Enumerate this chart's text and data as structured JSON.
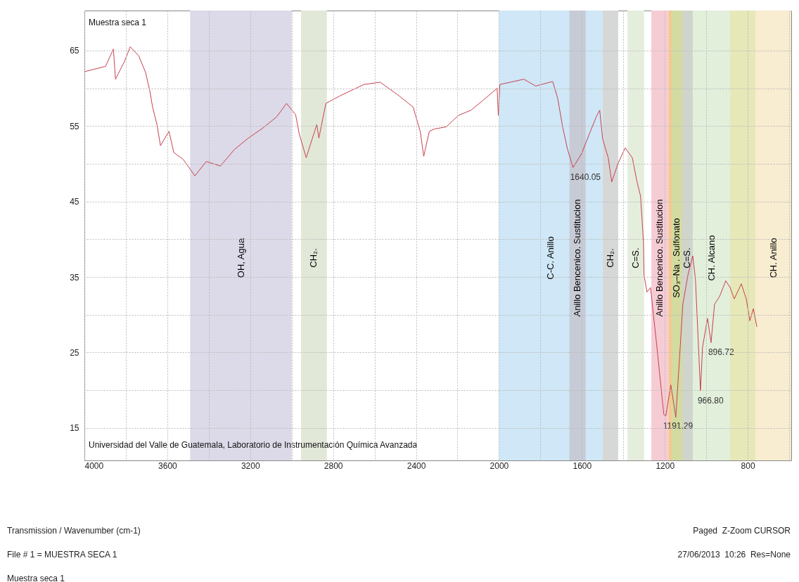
{
  "chart_data": {
    "type": "line",
    "title": "Muestra seca 1",
    "x": [
      4000,
      3898,
      3860,
      3850,
      3806,
      3779,
      3738,
      3705,
      3684,
      3671,
      3650,
      3633,
      3592,
      3569,
      3524,
      3467,
      3412,
      3344,
      3276,
      3209,
      3141,
      3073,
      3025,
      2981,
      2964,
      2930,
      2879,
      2869,
      2835,
      2767,
      2652,
      2573,
      2482,
      2414,
      2380,
      2363,
      2336,
      2312,
      2254,
      2196,
      2135,
      2077,
      2009,
      2003,
      1996,
      1880,
      1823,
      1741,
      1717,
      1693,
      1670,
      1643,
      1602,
      1565,
      1531,
      1514,
      1500,
      1473,
      1456,
      1425,
      1391,
      1357,
      1334,
      1317,
      1303,
      1300,
      1286,
      1269,
      1238,
      1205,
      1195,
      1171,
      1147,
      1133,
      1113,
      1089,
      1065,
      1052,
      1028,
      1018,
      994,
      977,
      960,
      936,
      906,
      885,
      865,
      831,
      807,
      790,
      773,
      756
    ],
    "series": [
      {
        "color": "#c9404f",
        "values": [
          62.2,
          62.9,
          65.2,
          61.2,
          63.6,
          65.5,
          64.3,
          62.1,
          59.6,
          57.5,
          55.2,
          52.4,
          54.3,
          51.5,
          50.6,
          48.4,
          50.3,
          49.7,
          51.9,
          53.4,
          54.7,
          56.2,
          58.0,
          56.5,
          54.0,
          50.8,
          55.2,
          53.4,
          58.0,
          59.0,
          60.5,
          60.8,
          59.0,
          57.5,
          54.3,
          51.0,
          54.3,
          54.6,
          54.9,
          56.4,
          57.1,
          58.4,
          60.0,
          56.4,
          60.5,
          61.2,
          60.3,
          60.9,
          58.7,
          54.9,
          52.0,
          49.5,
          51.3,
          53.9,
          56.2,
          57.1,
          53.3,
          50.8,
          47.6,
          50.1,
          52.1,
          50.8,
          47.6,
          45.7,
          39.6,
          35.2,
          33.0,
          33.6,
          25.7,
          16.8,
          16.6,
          20.7,
          16.4,
          22.5,
          31.4,
          35.2,
          37.8,
          34.6,
          19.9,
          25.7,
          29.5,
          26.3,
          31.4,
          32.4,
          34.5,
          33.6,
          32.1,
          34.1,
          32.1,
          29.2,
          30.8,
          28.4
        ]
      }
    ],
    "xlim": [
      4000,
      590
    ],
    "ylim": [
      10.7,
      70.3
    ],
    "xticks": [
      4000,
      {
        "value": 3800,
        "label": null
      },
      3600,
      {
        "value": 3400,
        "label": null
      },
      3200,
      {
        "value": 3000,
        "label": null
      },
      2800,
      {
        "value": 2600,
        "label": null
      },
      2400,
      {
        "value": 2200,
        "label": null
      },
      2000,
      {
        "value": 1800,
        "label": null
      },
      1600,
      {
        "value": 1400,
        "label": null
      },
      1200,
      {
        "value": 1000,
        "label": null
      },
      800,
      {
        "value": 600,
        "label": null
      }
    ],
    "yticks": [
      15,
      {
        "value": 20,
        "label": null
      },
      25,
      {
        "value": 30,
        "label": null
      },
      35,
      {
        "value": 40,
        "label": null
      },
      45,
      {
        "value": 50,
        "label": null
      },
      55,
      {
        "value": 60,
        "label": null
      },
      65
    ],
    "grid": true,
    "bands": [
      {
        "axis": "x",
        "from": 3490,
        "to": 3000,
        "label": "OH, Agua",
        "color": "#dcdae8"
      },
      {
        "axis": "x",
        "from": 2955,
        "to": 2830,
        "label": "CH₂.",
        "color": "#e2e8d8"
      },
      {
        "axis": "x",
        "from": 2000,
        "to": 1500,
        "label": "C-C.          Anillo",
        "color": "#cfe7f6"
      },
      {
        "axis": "x",
        "from": 1660,
        "to": 1582,
        "label": "Anillo  Bencenico.  Sustitucion",
        "color": "#c7cbd6"
      },
      {
        "axis": "x",
        "from": 1500,
        "to": 1425,
        "label": "CH₂.",
        "color": "#d6d8d8"
      },
      {
        "axis": "x",
        "from": 1380,
        "to": 1300,
        "label": "C=S.",
        "color": "#e5eedd"
      },
      {
        "axis": "x",
        "from": 1265,
        "to": 1181,
        "label": "Anillo  Bencenico.  Sustitucion",
        "color": "#f6ccd4"
      },
      {
        "axis": "x",
        "from": 1181,
        "to": 1167,
        "color": "#f3c98c"
      },
      {
        "axis": "x",
        "from": 1167,
        "to": 1116,
        "label": "SO₃–Na . Sulfonato",
        "color": "#d3dba0"
      },
      {
        "axis": "x",
        "from": 1116,
        "to": 1065,
        "label": "C=S.",
        "color": "#d0d5cc"
      },
      {
        "axis": "x",
        "from": 1065,
        "to": 885,
        "label": "CH. Alcano",
        "color": "#e2efdb"
      },
      {
        "axis": "x",
        "from": 885,
        "to": 763,
        "color": "#e6e8b8"
      },
      {
        "axis": "x",
        "from": 763,
        "to": 590,
        "label": "CH.          Anillo",
        "color": "#f8ecd1"
      }
    ],
    "annotations": [
      "Universidad del Valle de Guatemala, Laboratorio de Instrumentación Química Avanzada",
      {
        "text": "1640.05",
        "x": 1643,
        "y": 49.5
      },
      {
        "text": "1191.29",
        "x": 1195,
        "y": 16.6
      },
      {
        "text": "966.80",
        "x": 1028,
        "y": 19.9
      },
      {
        "text": "896.72",
        "x": 977,
        "y": 26.3
      },
      "Transmission / Wavenumber (cm-1)",
      "Paged  Z-Zoom CURSOR",
      "File # 1 = MUESTRA SECA 1",
      "27/06/2013  10:26  Res=None",
      "Muestra seca 1"
    ]
  }
}
